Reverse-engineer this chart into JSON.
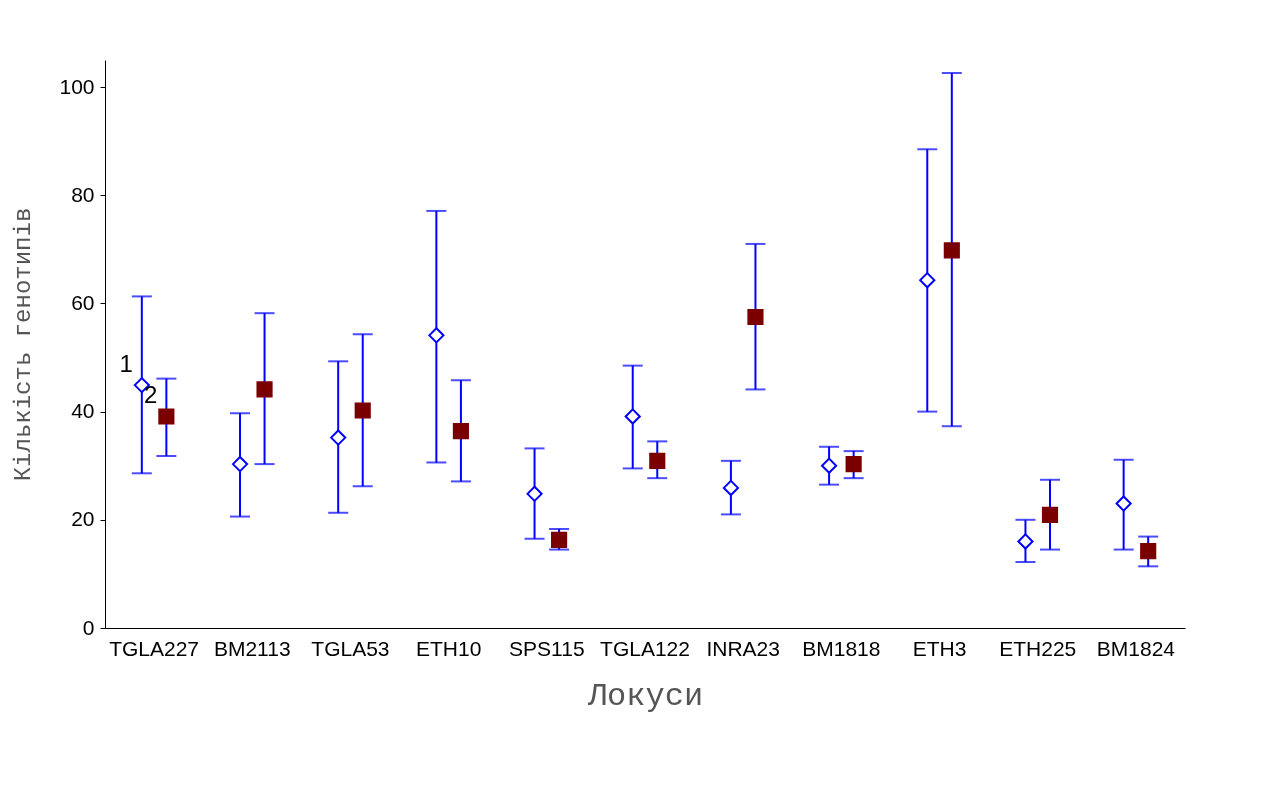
{
  "chart_data": {
    "type": "scatter",
    "xlabel": "Локуси",
    "ylabel": "Кількість генотипів",
    "categories": [
      "TGLA227",
      "BM2113",
      "TGLA53",
      "ETH10",
      "SPS115",
      "TGLA122",
      "INRA23",
      "BM1818",
      "ETH3",
      "ETH225",
      "BM1824"
    ],
    "series": [
      {
        "name": "1",
        "color": "#0000ff",
        "marker": "diamond",
        "values": [
          44.9,
          30.3,
          35.2,
          54.1,
          24.8,
          39.1,
          25.9,
          30.0,
          64.3,
          16.0,
          23.0
        ],
        "errors": [
          [
            28.6,
            61.3
          ],
          [
            20.6,
            39.7
          ],
          [
            21.3,
            49.3
          ],
          [
            30.6,
            77.1
          ],
          [
            16.5,
            33.2
          ],
          [
            29.5,
            48.5
          ],
          [
            21.0,
            30.9
          ],
          [
            26.5,
            33.5
          ],
          [
            40.0,
            88.5
          ],
          [
            12.2,
            20.0
          ],
          [
            14.5,
            31.1
          ]
        ]
      },
      {
        "name": "2",
        "color": "#7a0000",
        "marker": "square",
        "values": [
          39.1,
          44.1,
          40.2,
          36.4,
          16.3,
          30.9,
          57.5,
          30.3,
          69.8,
          20.9,
          14.2
        ],
        "errors": [
          [
            31.8,
            46.1
          ],
          [
            30.3,
            58.2
          ],
          [
            26.2,
            54.3
          ],
          [
            27.1,
            45.8
          ],
          [
            14.5,
            18.3
          ],
          [
            27.7,
            34.5
          ],
          [
            44.1,
            71.0
          ],
          [
            27.7,
            32.7
          ],
          [
            37.3,
            102.6
          ],
          [
            14.5,
            27.4
          ],
          [
            11.4,
            16.9
          ]
        ]
      }
    ],
    "ylim": [
      0,
      105
    ],
    "yticks": [
      0,
      20,
      40,
      60,
      80,
      100
    ],
    "grid": false,
    "legend": false
  }
}
